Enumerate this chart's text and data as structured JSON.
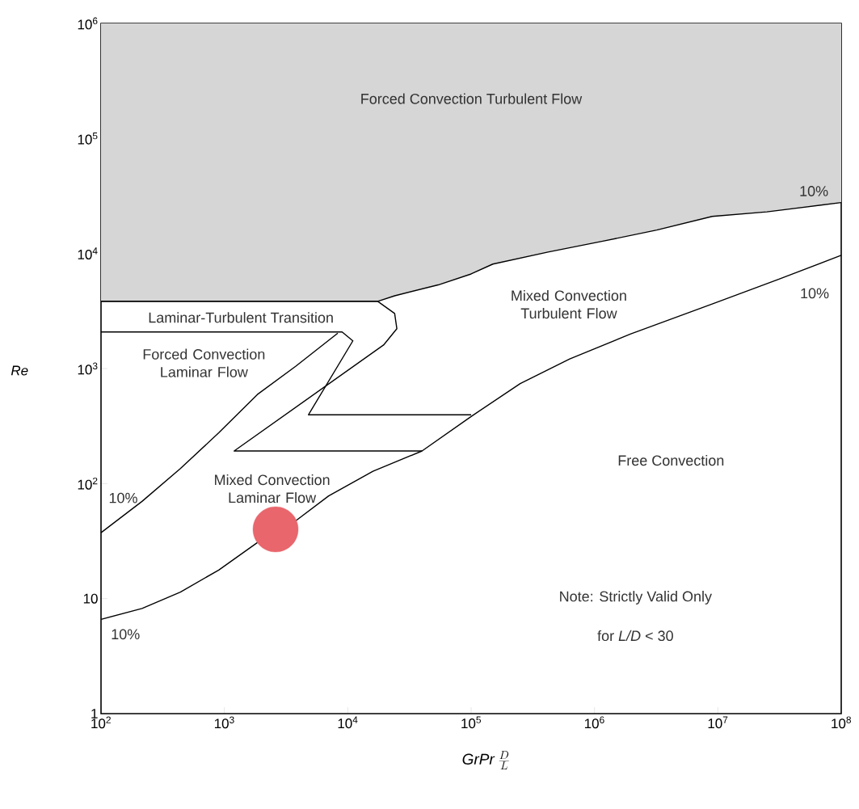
{
  "chart_data": {
    "type": "line",
    "xlabel": "\\mathit{GrPr}\\;\\frac{D}{L}",
    "ylabel": "Re",
    "log": "xy",
    "marker": "none",
    "line_style": "solid",
    "xlim": [
      100,
      100000000
    ],
    "ylim": [
      1,
      1000000
    ],
    "xticks": [
      {
        "value": 100,
        "label": "10$^{2}$"
      },
      {
        "value": 1000,
        "label": "10$^{3}$"
      },
      {
        "value": 10000,
        "label": "10$^{4}$"
      },
      {
        "value": 100000,
        "label": "10$^{5}$"
      },
      {
        "value": 1000000,
        "label": "10$^{6}$"
      },
      {
        "value": 10000000,
        "label": "10$^{7}$"
      },
      {
        "value": 100000000,
        "label": "10$^{8}$"
      }
    ],
    "yticks": [
      1,
      10,
      {
        "value": 100,
        "label": "10$^{2}$"
      },
      {
        "value": 1000,
        "label": "10$^{3}$"
      },
      {
        "value": 10000,
        "label": "10$^{4}$"
      },
      {
        "value": 100000,
        "label": "10$^{5}$"
      },
      {
        "value": 1000000,
        "label": "10$^{6}$"
      }
    ],
    "series": [
      {
        "type": "scatter",
        "color": "#e8666c",
        "marker": "circle",
        "x": [
          2600
        ],
        "values": [
          40
        ]
      },
      {
        "color": "#000000",
        "x": [
          100,
          17500,
          24000,
          54000,
          100000,
          150000,
          420000,
          1170000,
          3200000,
          9000000,
          25000000,
          100000000
        ],
        "values": [
          3840,
          3840,
          4290,
          5330,
          6640,
          8090,
          10300,
          12800,
          16000,
          21000,
          23000,
          27700
        ],
        "lower": [
          3840,
          3840,
          4290,
          5330,
          6640,
          8090,
          10300,
          12800,
          16000,
          21000,
          23000,
          27700
        ],
        "upper": [
          1000000,
          1000000,
          1000000,
          1000000,
          1000000,
          1000000,
          1000000,
          1000000,
          1000000,
          1000000,
          1000000,
          1000000
        ]
      },
      {
        "color": "#000000",
        "x": [
          100,
          215,
          440,
          900,
          1850,
          3800,
          7000,
          16000,
          40000,
          100000,
          250000,
          630000,
          1950000,
          9000000,
          31000000,
          100000000
        ],
        "values": [
          6.6,
          8.2,
          11.4,
          17.7,
          30.7,
          47.6,
          78,
          128,
          192,
          383,
          740,
          1210,
          1990,
          3640,
          5960,
          9660
        ]
      },
      {
        "color": "#000000",
        "x": [
          100,
          215,
          440,
          900,
          1850,
          3800,
          8300
        ],
        "values": [
          37.4,
          70,
          135,
          276,
          594,
          1050,
          2030
        ]
      },
      {
        "color": "#000000",
        "x": [
          100,
          9000,
          11000,
          4800,
          100000
        ],
        "values": [
          2080,
          2080,
          1740,
          396,
          396
        ]
      },
      {
        "color": "#000000",
        "x": [
          100,
          17500,
          24000,
          25000,
          19500,
          1200,
          40000
        ],
        "values": [
          3840,
          3840,
          3010,
          2220,
          1600,
          192,
          192
        ]
      }
    ],
    "annotations": [
      "Forced Convection Turbulent Flow",
      "Laminar-Turbulent Transition",
      "Forced Convection Laminar Flow",
      "Mixed Convection Turbulent Flow",
      "Mixed Convection Laminar Flow",
      "Free Convection",
      "Note: Strictly Valid Only",
      "for *L/D* < 30",
      "10%",
      "10%",
      "10%",
      "10%"
    ]
  }
}
